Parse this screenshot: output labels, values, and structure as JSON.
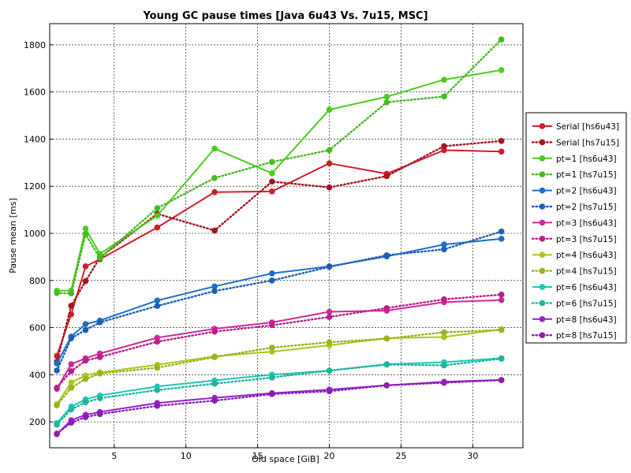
{
  "chart_data": {
    "type": "line",
    "title": "Young GC pause times [Java 6u43 Vs. 7u15, MSC]",
    "xlabel": "Old space [GiB]",
    "ylabel": "Pause mean [ms]",
    "xlim": [
      0.5,
      33.5
    ],
    "ylim": [
      90,
      1890
    ],
    "xticks": [
      5,
      10,
      15,
      20,
      25,
      30
    ],
    "yticks": [
      200,
      400,
      600,
      800,
      1000,
      1200,
      1400,
      1600,
      1800
    ],
    "grid": true,
    "legend_position": "right",
    "x": [
      1,
      2,
      3,
      4,
      8,
      12,
      16,
      20,
      24,
      28,
      32
    ],
    "series": [
      {
        "name": "Serial [hs6u43]",
        "color": "#d01e28",
        "style": "solid",
        "values": [
          480,
          657,
          860,
          890,
          1025,
          1175,
          1178,
          1297,
          1253,
          1353,
          1347
        ]
      },
      {
        "name": "Serial [hs7u15]",
        "color": "#a51420",
        "style": "dotted",
        "values": [
          455,
          693,
          797,
          897,
          1083,
          1012,
          1220,
          1195,
          1243,
          1370,
          1392
        ]
      },
      {
        "name": "pt=1 [hs6u43]",
        "color": "#4ccd1c",
        "style": "solid",
        "values": [
          757,
          757,
          1020,
          913,
          1075,
          1360,
          1255,
          1525,
          1580,
          1652,
          1693
        ]
      },
      {
        "name": "pt=1 [hs7u15]",
        "color": "#44bb22",
        "style": "dotted",
        "values": [
          747,
          745,
          997,
          895,
          1107,
          1235,
          1303,
          1353,
          1556,
          1581,
          1823
        ]
      },
      {
        "name": "pt=2 [hs6u43]",
        "color": "#1e6ec8",
        "style": "solid",
        "values": [
          448,
          562,
          615,
          630,
          715,
          775,
          830,
          860,
          902,
          953,
          977
        ]
      },
      {
        "name": "pt=2 [hs7u15]",
        "color": "#1e5fb4",
        "style": "dotted",
        "values": [
          418,
          555,
          590,
          622,
          692,
          755,
          800,
          858,
          907,
          932,
          1008
        ]
      },
      {
        "name": "pt=3 [hs6u43]",
        "color": "#d0289a",
        "style": "solid",
        "values": [
          340,
          445,
          470,
          490,
          557,
          595,
          622,
          667,
          672,
          708,
          717
        ]
      },
      {
        "name": "pt=3 [hs7u15]",
        "color": "#b8208a",
        "style": "dotted",
        "values": [
          345,
          415,
          460,
          475,
          540,
          583,
          610,
          645,
          683,
          720,
          740
        ]
      },
      {
        "name": "pt=4 [hs6u43]",
        "color": "#a8c81e",
        "style": "solid",
        "values": [
          275,
          367,
          397,
          410,
          442,
          478,
          498,
          525,
          555,
          560,
          593
        ]
      },
      {
        "name": "pt=4 [hs7u15]",
        "color": "#98b41e",
        "style": "dotted",
        "values": [
          270,
          345,
          382,
          405,
          430,
          475,
          515,
          538,
          553,
          580,
          590
        ]
      },
      {
        "name": "pt=6 [hs6u43]",
        "color": "#1ec8b4",
        "style": "solid",
        "values": [
          195,
          265,
          295,
          312,
          350,
          376,
          400,
          417,
          445,
          453,
          470
        ]
      },
      {
        "name": "pt=6 [hs7u15]",
        "color": "#1eb4a0",
        "style": "dotted",
        "values": [
          188,
          253,
          283,
          300,
          335,
          362,
          388,
          418,
          443,
          440,
          468
        ]
      },
      {
        "name": "pt=8 [hs6u43]",
        "color": "#9a20c8",
        "style": "solid",
        "values": [
          148,
          207,
          230,
          242,
          280,
          302,
          322,
          337,
          355,
          370,
          378
        ]
      },
      {
        "name": "pt=8 [hs7u15]",
        "color": "#8a1eb4",
        "style": "dotted",
        "values": [
          150,
          197,
          220,
          233,
          268,
          290,
          318,
          330,
          355,
          366,
          377
        ]
      }
    ]
  }
}
